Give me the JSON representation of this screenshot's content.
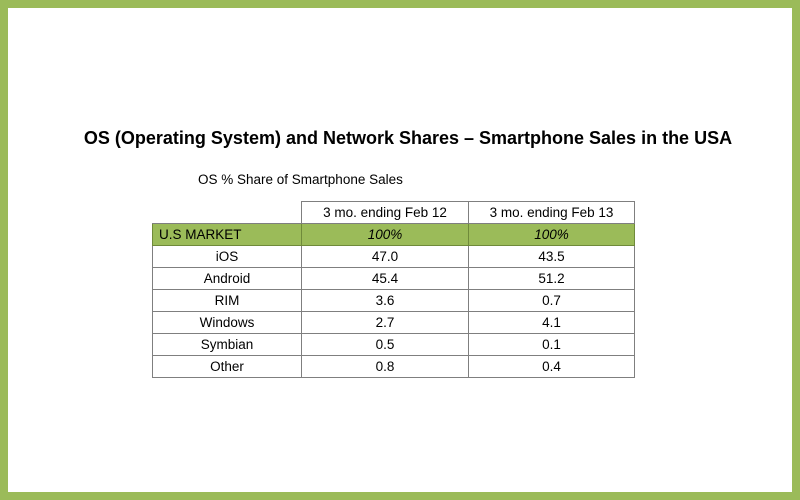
{
  "title": "OS (Operating System) and Network Shares – Smartphone Sales in the USA",
  "subtitle": "OS % Share of Smartphone Sales",
  "chart_data": {
    "type": "table",
    "title": "OS (Operating System) and Network Shares – Smartphone Sales in the USA",
    "subtitle": "OS % Share of Smartphone Sales",
    "columns": [
      "3 mo. ending Feb 12",
      "3 mo. ending Feb 13"
    ],
    "market_row": {
      "label": "U.S MARKET",
      "values": [
        "100%",
        "100%"
      ]
    },
    "rows": [
      {
        "label": "iOS",
        "values": [
          "47.0",
          "43.5"
        ]
      },
      {
        "label": "Android",
        "values": [
          "45.4",
          "51.2"
        ]
      },
      {
        "label": "RIM",
        "values": [
          "3.6",
          "0.7"
        ]
      },
      {
        "label": "Windows",
        "values": [
          "2.7",
          "4.1"
        ]
      },
      {
        "label": "Symbian",
        "values": [
          "0.5",
          "0.1"
        ]
      },
      {
        "label": "Other",
        "values": [
          "0.8",
          "0.4"
        ]
      }
    ]
  },
  "colors": {
    "border": "#9bbb59",
    "market_row_fill": "#9bbb59"
  }
}
